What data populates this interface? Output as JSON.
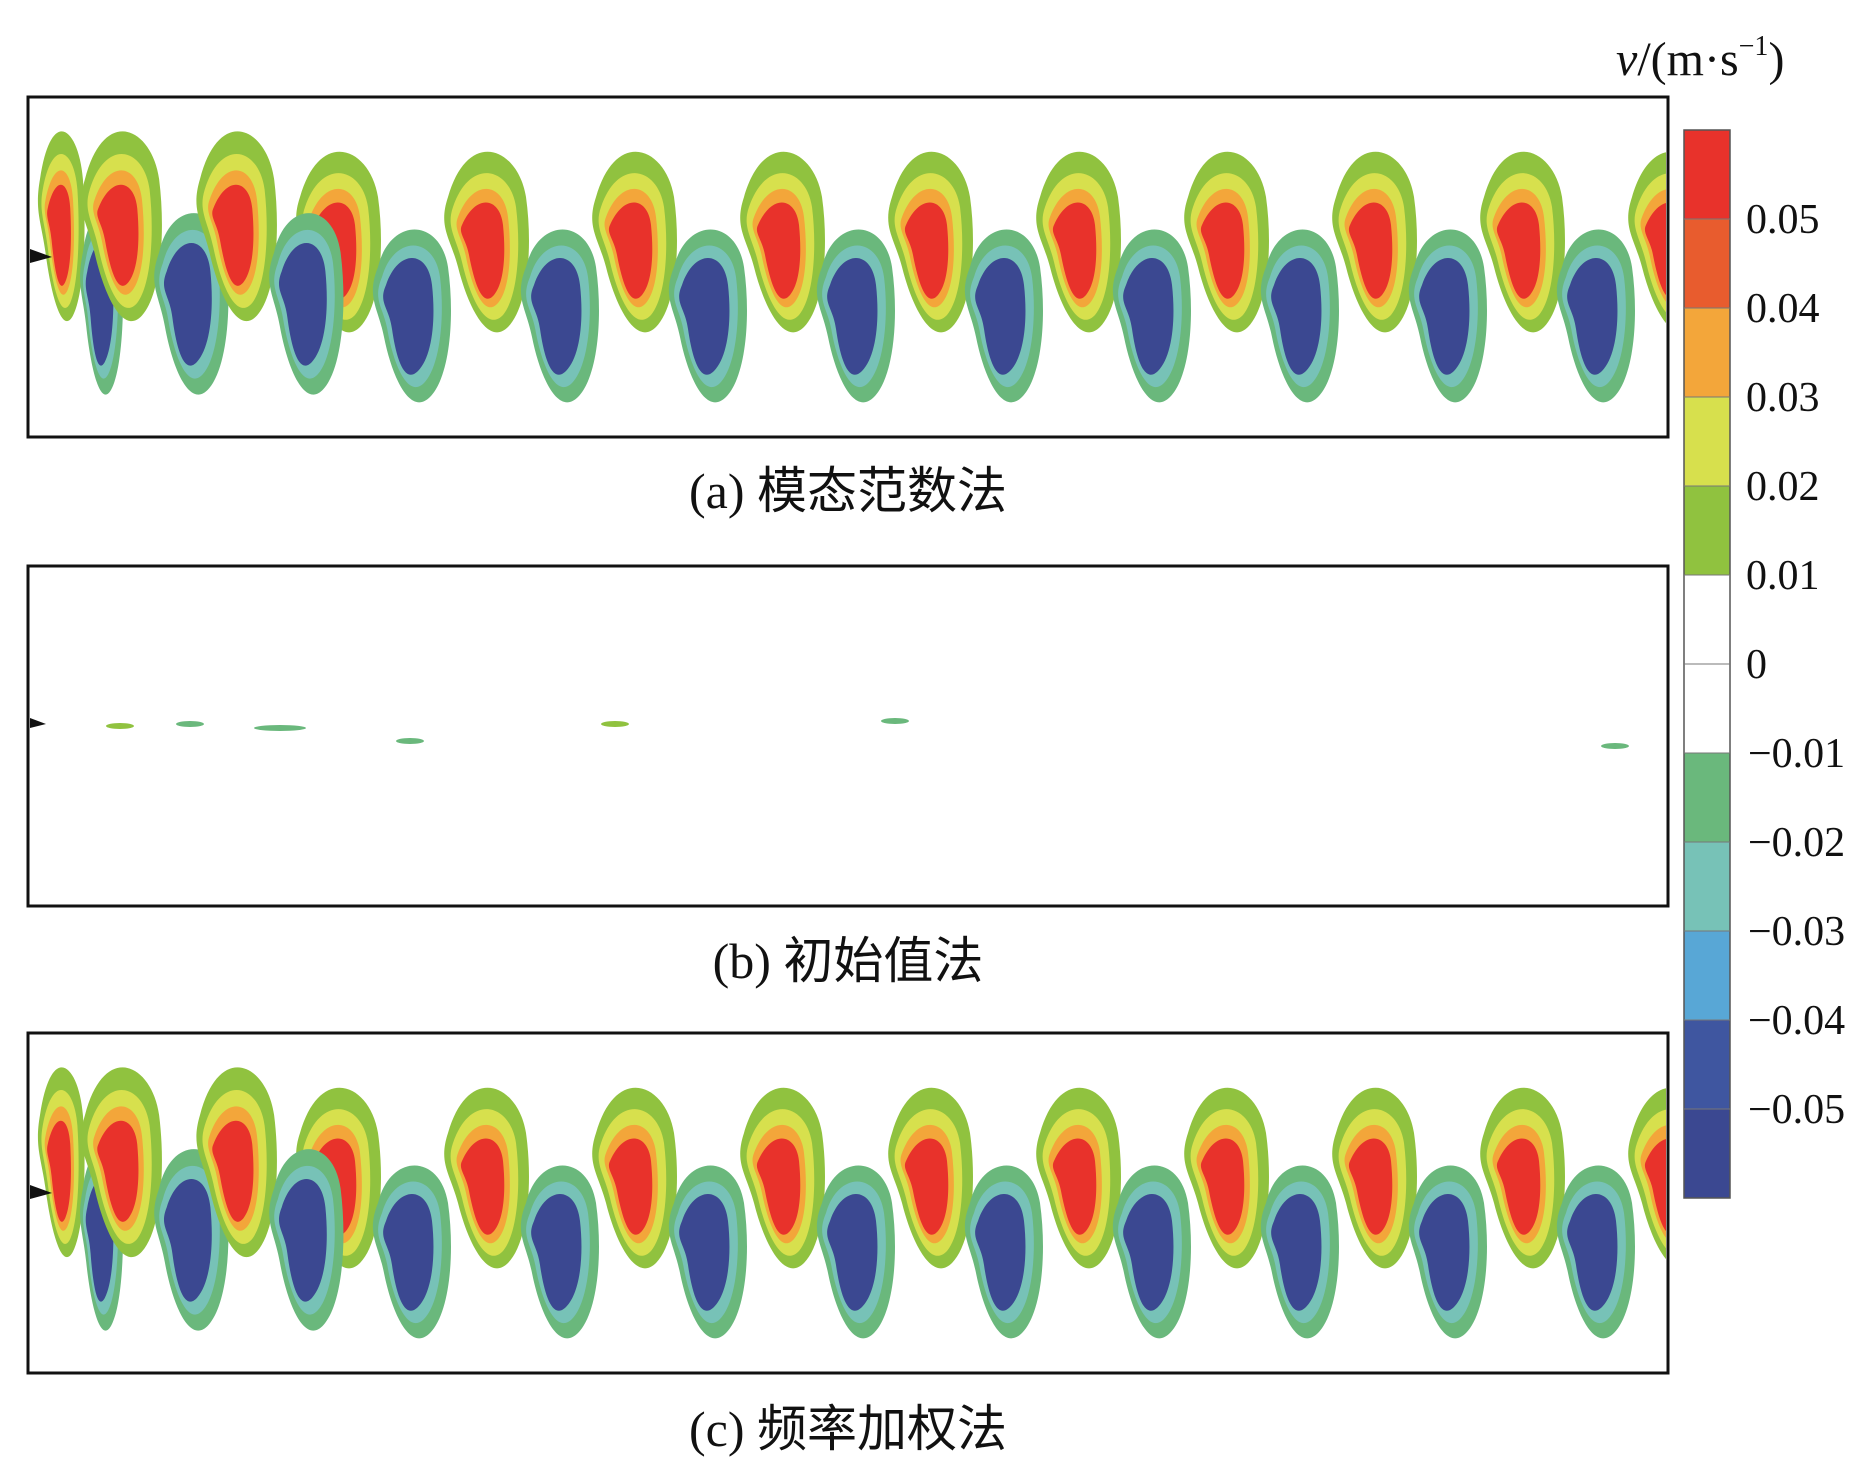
{
  "chart_data": {
    "type": "heatmap",
    "colorbar": {
      "unit_var": "v",
      "unit_prefix": "/(m·s",
      "unit_exp": "−1",
      "unit_suffix": ")",
      "tick_labels": [
        "0.05",
        "0.04",
        "0.03",
        "0.02",
        "0.01",
        "0",
        "−0.01",
        "−0.02",
        "−0.03",
        "−0.04",
        "−0.05"
      ],
      "levels": [
        {
          "color": "#e8322b"
        },
        {
          "color": "#e85c2e"
        },
        {
          "color": "#f3a63a"
        },
        {
          "color": "#d7e04d"
        },
        {
          "color": "#90c23f"
        },
        {
          "color": "#ffffff"
        },
        {
          "color": "#ffffff"
        },
        {
          "color": "#6ab87c"
        },
        {
          "color": "#77c2b7"
        },
        {
          "color": "#58a7d6"
        },
        {
          "color": "#3f56a0"
        },
        {
          "color": "#3b4891"
        }
      ]
    },
    "panels": [
      {
        "caption": "(a) 模态范数法",
        "pattern": "vortex_street"
      },
      {
        "caption": "(b) 初始值法",
        "pattern": "near_zero"
      },
      {
        "caption": "(c) 频率加权法",
        "pattern": "vortex_street"
      }
    ]
  }
}
